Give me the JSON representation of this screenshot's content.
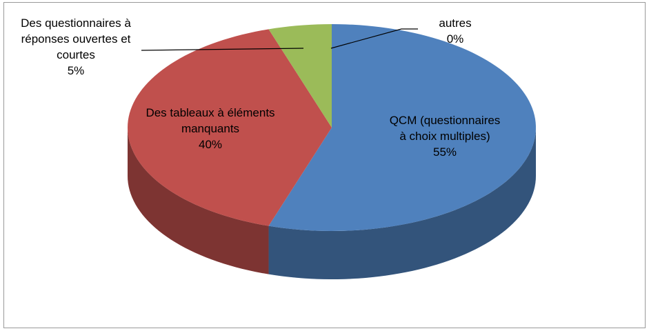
{
  "chart_data": {
    "type": "pie3d",
    "categories": [
      "QCM (questionnaires à choix multiples)",
      "Des tableaux à éléments manquants",
      "Des questionnaires à réponses ouvertes et courtes",
      "autres"
    ],
    "values": [
      55,
      40,
      5,
      0
    ],
    "value_labels": [
      "55%",
      "40%",
      "5%",
      "0%"
    ],
    "colors": [
      "#4f81bd",
      "#c0504d",
      "#9bbb59",
      "#8064a2"
    ]
  }
}
